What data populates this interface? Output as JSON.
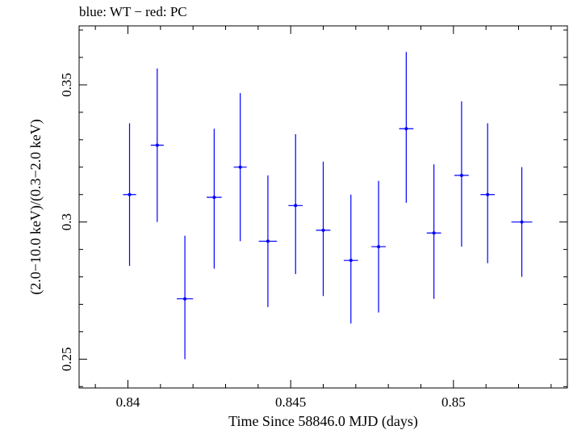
{
  "chart_data": {
    "type": "scatter",
    "title": "blue: WT − red: PC",
    "xlabel": "Time Since 58846.0 MJD (days)",
    "ylabel": "(2.0−10.0 keV)/(0.3−2.0 keV)",
    "xlim": [
      0.8385,
      0.8535
    ],
    "ylim": [
      0.2395,
      0.3715
    ],
    "x_ticks": [
      0.84,
      0.845,
      0.85
    ],
    "x_tick_labels": [
      "0.84",
      "0.845",
      "0.85"
    ],
    "y_ticks": [
      0.25,
      0.3,
      0.35
    ],
    "y_tick_labels": [
      "0.25",
      "0.3",
      "0.35"
    ],
    "grid": false,
    "series": [
      {
        "color": "#0000ff",
        "points": [
          {
            "x": 0.84005,
            "xerr": 0.0002,
            "y": 0.31,
            "ylo": 0.284,
            "yhi": 0.336
          },
          {
            "x": 0.8409,
            "xerr": 0.0002,
            "y": 0.328,
            "ylo": 0.3,
            "yhi": 0.356
          },
          {
            "x": 0.84175,
            "xerr": 0.00025,
            "y": 0.272,
            "ylo": 0.25,
            "yhi": 0.295
          },
          {
            "x": 0.84265,
            "xerr": 0.00023,
            "y": 0.309,
            "ylo": 0.283,
            "yhi": 0.334
          },
          {
            "x": 0.84345,
            "xerr": 0.0002,
            "y": 0.32,
            "ylo": 0.293,
            "yhi": 0.347
          },
          {
            "x": 0.8443,
            "xerr": 0.00028,
            "y": 0.293,
            "ylo": 0.269,
            "yhi": 0.317
          },
          {
            "x": 0.84515,
            "xerr": 0.00022,
            "y": 0.306,
            "ylo": 0.281,
            "yhi": 0.332
          },
          {
            "x": 0.846,
            "xerr": 0.00022,
            "y": 0.297,
            "ylo": 0.273,
            "yhi": 0.322
          },
          {
            "x": 0.84685,
            "xerr": 0.00022,
            "y": 0.286,
            "ylo": 0.263,
            "yhi": 0.31
          },
          {
            "x": 0.8477,
            "xerr": 0.00022,
            "y": 0.291,
            "ylo": 0.267,
            "yhi": 0.315
          },
          {
            "x": 0.84855,
            "xerr": 0.00022,
            "y": 0.334,
            "ylo": 0.307,
            "yhi": 0.362
          },
          {
            "x": 0.8494,
            "xerr": 0.00022,
            "y": 0.296,
            "ylo": 0.272,
            "yhi": 0.321
          },
          {
            "x": 0.85025,
            "xerr": 0.00022,
            "y": 0.317,
            "ylo": 0.291,
            "yhi": 0.344
          },
          {
            "x": 0.85105,
            "xerr": 0.00022,
            "y": 0.31,
            "ylo": 0.285,
            "yhi": 0.336
          },
          {
            "x": 0.8521,
            "xerr": 0.00032,
            "y": 0.3,
            "ylo": 0.28,
            "yhi": 0.32
          }
        ]
      }
    ]
  }
}
